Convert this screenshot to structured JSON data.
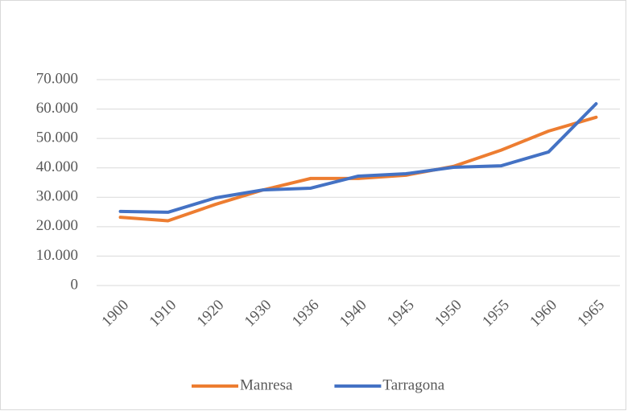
{
  "chart_data": {
    "type": "line",
    "categories": [
      "1900",
      "1910",
      "1920",
      "1930",
      "1936",
      "1940",
      "1945",
      "1950",
      "1955",
      "1960",
      "1965"
    ],
    "series": [
      {
        "name": "Manresa",
        "color": "#ed7d31",
        "values": [
          23200,
          22000,
          27600,
          32500,
          36400,
          36400,
          37500,
          40500,
          46000,
          52500,
          57200
        ]
      },
      {
        "name": "Tarragona",
        "color": "#4472c4",
        "values": [
          25200,
          24900,
          29800,
          32500,
          33100,
          37200,
          38000,
          40200,
          40700,
          45400,
          61800
        ]
      }
    ],
    "ylim": [
      0,
      70000
    ],
    "yticks": [
      0,
      {
        "value": 10000,
        "label": "10.000"
      },
      {
        "value": 20000,
        "label": "20.000"
      },
      {
        "value": 30000,
        "label": "30.000"
      },
      {
        "value": 40000,
        "label": "40.000"
      },
      {
        "value": 50000,
        "label": "50.000"
      },
      {
        "value": 60000,
        "label": "60.000"
      },
      {
        "value": 70000,
        "label": "70.000"
      }
    ],
    "grid": true,
    "legend": "bottom"
  }
}
